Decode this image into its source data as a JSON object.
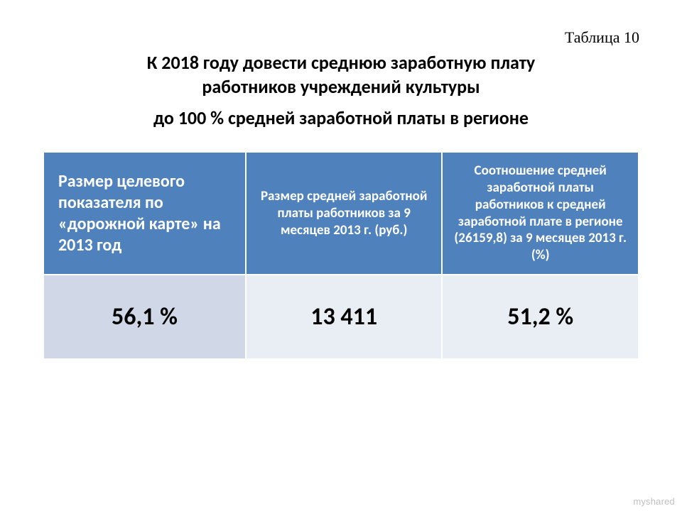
{
  "table_number": "Таблица 10",
  "title": {
    "line1": "К 2018 году довести среднюю заработную плату",
    "line2": "работников учреждений культуры",
    "line3": "до 100 % средней заработной платы в регионе"
  },
  "table": {
    "type": "table",
    "header_bg": "#4f81bd",
    "header_color": "#ffffff",
    "row_bg_a": "#d0d8e8",
    "row_bg_b": "#e9edf4",
    "border_color": "#ffffff",
    "columns": [
      {
        "key": "target",
        "label": "Размер целевого показателя по «дорожной карте» на 2013 год",
        "header_fontsize": 24,
        "align": "left"
      },
      {
        "key": "salary",
        "label": "Размер средней заработной платы работников\nза 9 месяцев  2013 г. (руб.)",
        "header_fontsize": 19,
        "align": "center"
      },
      {
        "key": "ratio",
        "label": "Соотношение средней заработной платы работников к средней заработной плате в регионе (26159,8)\nза 9 месяцев 2013 г. (%)",
        "header_fontsize": 19,
        "align": "center"
      }
    ],
    "rows": [
      {
        "target": "56,1 %",
        "salary": "13 411",
        "ratio": "51,2 %"
      }
    ],
    "value_fontsize": 34,
    "value_fontweight": "bold"
  },
  "watermark": "myshared"
}
